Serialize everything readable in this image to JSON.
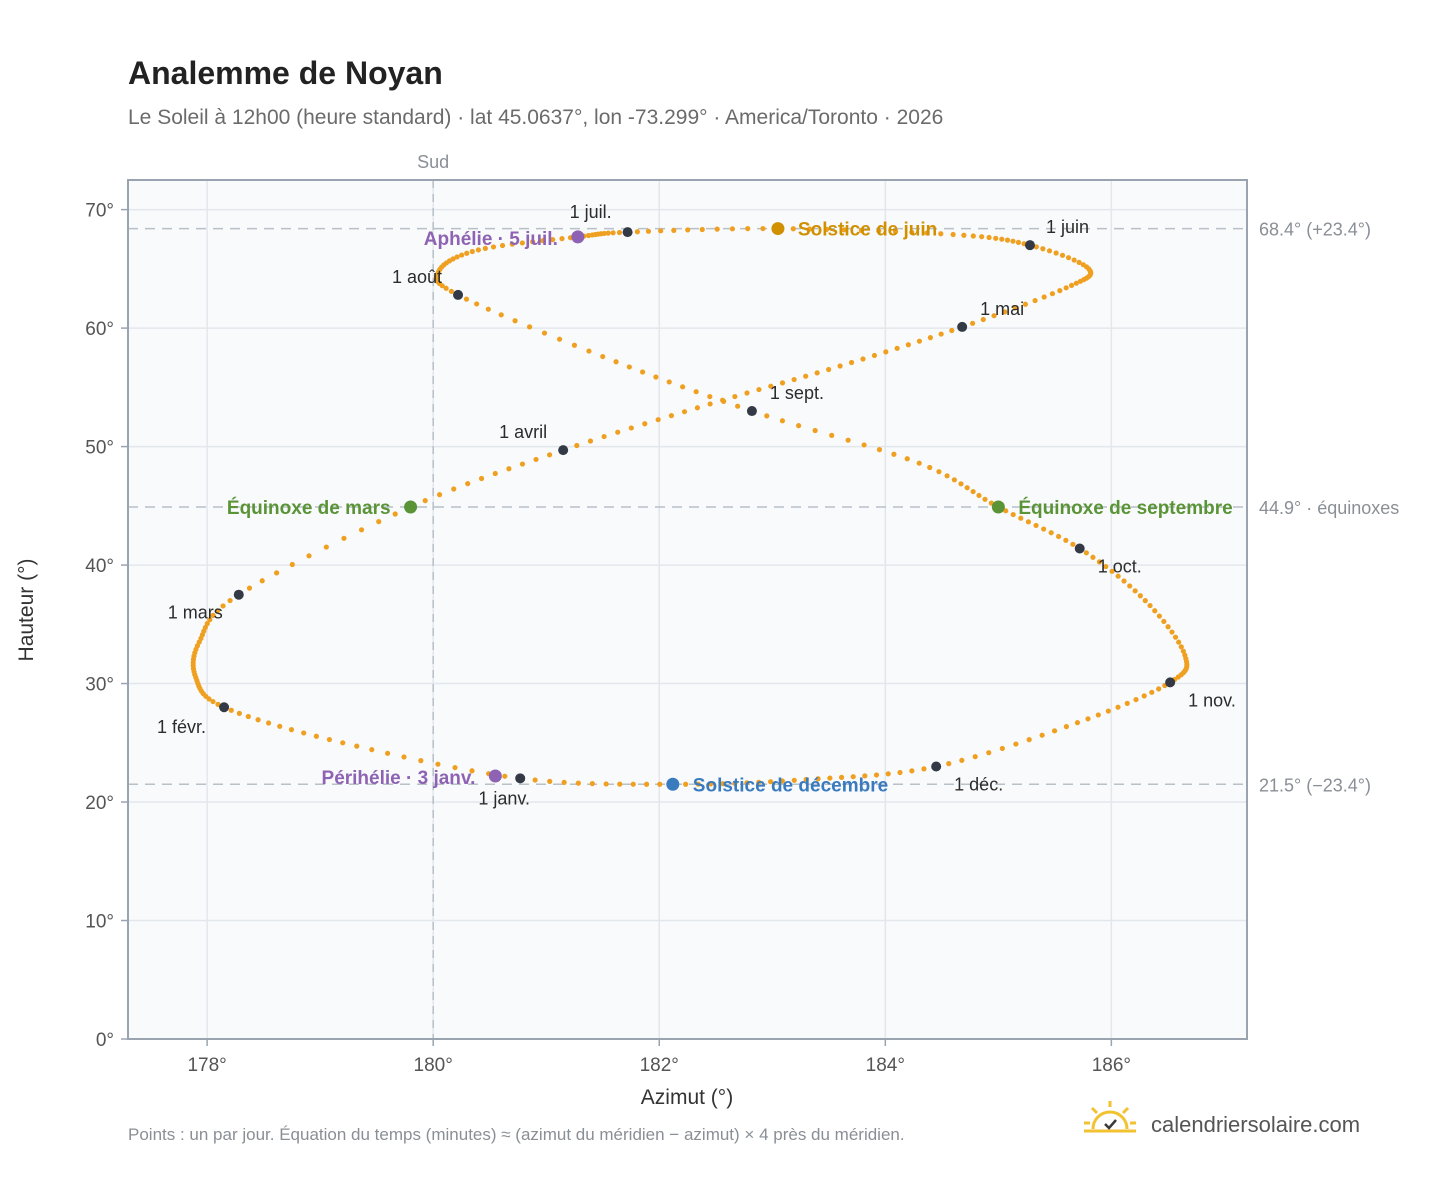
{
  "title": "Analemme de Noyan",
  "subtitle": "Le Soleil à 12h00 (heure standard) · lat 45.0637°, lon -73.299° · America/Toronto · 2026",
  "footnote": "Points : un par jour. Équation du temps (minutes) ≈ (azimut du méridien − azimut) × 4 près du méridien.",
  "brand": "calendriersolaire.com",
  "brand_icon": "sun-checkmark-logo",
  "colors": {
    "curve": "#f0a020",
    "month_dot": "#333a45",
    "equinox": "#5a9437",
    "solstice_june": "#d09000",
    "solstice_december": "#3a7abf",
    "apsis": "#8e63b3",
    "reference_line": "#b8c0c8",
    "plot_bg": "#f8fafc",
    "frame": "#9aa4b0"
  },
  "chart_data": {
    "type": "scatter",
    "xlabel": "Azimut (°)",
    "ylabel": "Hauteur (°)",
    "xlim": [
      177.3,
      187.2
    ],
    "ylim": [
      0,
      72.5
    ],
    "xticks": [
      178,
      180,
      182,
      184,
      186
    ],
    "xtick_labels": [
      "178°",
      "180°",
      "182°",
      "184°",
      "186°"
    ],
    "yticks": [
      0,
      10,
      20,
      30,
      40,
      50,
      60,
      70
    ],
    "ytick_labels": [
      "0°",
      "10°",
      "20°",
      "30°",
      "40°",
      "50°",
      "60°",
      "70°"
    ],
    "grid": true,
    "south_line": {
      "x": 180,
      "label": "Sud"
    },
    "reference_lines": [
      {
        "y": 68.4,
        "label": "68.4° (+23.4°)"
      },
      {
        "y": 44.9,
        "label": "44.9° · équinoxes"
      },
      {
        "y": 21.5,
        "label": "21.5° (−23.4°)"
      }
    ],
    "series": [
      {
        "points_per": "day",
        "points": [
          [
            180.77,
            22.0
          ],
          [
            179.2,
            25.0
          ],
          [
            178.15,
            28.0
          ],
          [
            177.9,
            30.5
          ],
          [
            177.93,
            33.5
          ],
          [
            178.28,
            37.5
          ],
          [
            179.8,
            44.9
          ],
          [
            181.15,
            49.7
          ],
          [
            182.45,
            53.6
          ],
          [
            183.6,
            56.8
          ],
          [
            184.68,
            60.1
          ],
          [
            185.6,
            63.4
          ],
          [
            185.8,
            65.0
          ],
          [
            185.28,
            67.0
          ],
          [
            184.6,
            67.9
          ],
          [
            183.05,
            68.4
          ],
          [
            181.72,
            68.1
          ],
          [
            181.28,
            67.7
          ],
          [
            180.4,
            66.6
          ],
          [
            180.05,
            64.8
          ],
          [
            180.22,
            62.8
          ],
          [
            181.5,
            57.6
          ],
          [
            182.82,
            53.0
          ],
          [
            184.3,
            48.6
          ],
          [
            185.0,
            44.9
          ],
          [
            185.72,
            41.4
          ],
          [
            186.3,
            37.0
          ],
          [
            186.65,
            32.4
          ],
          [
            186.52,
            30.1
          ],
          [
            185.7,
            26.7
          ],
          [
            184.45,
            23.0
          ],
          [
            183.3,
            21.9
          ],
          [
            182.12,
            21.5
          ],
          [
            180.77,
            22.0
          ]
        ]
      }
    ],
    "month_markers": [
      {
        "label": "1 janv.",
        "x": 180.77,
        "y": 22.0
      },
      {
        "label": "1 févr.",
        "x": 178.15,
        "y": 28.0
      },
      {
        "label": "1 mars",
        "x": 178.28,
        "y": 37.5
      },
      {
        "label": "1 avril",
        "x": 181.15,
        "y": 49.7
      },
      {
        "label": "1 mai",
        "x": 184.68,
        "y": 60.1
      },
      {
        "label": "1 juin",
        "x": 185.28,
        "y": 67.0
      },
      {
        "label": "1 juil.",
        "x": 181.72,
        "y": 68.1
      },
      {
        "label": "1 août",
        "x": 180.22,
        "y": 62.8
      },
      {
        "label": "1 sept.",
        "x": 182.82,
        "y": 53.0
      },
      {
        "label": "1 oct.",
        "x": 185.72,
        "y": 41.4
      },
      {
        "label": "1 nov.",
        "x": 186.52,
        "y": 30.1
      },
      {
        "label": "1 déc.",
        "x": 184.45,
        "y": 23.0
      }
    ],
    "events": [
      {
        "label": "Équinoxe de mars",
        "x": 179.8,
        "y": 44.9,
        "kind": "equinox"
      },
      {
        "label": "Équinoxe de septembre",
        "x": 185.0,
        "y": 44.9,
        "kind": "equinox"
      },
      {
        "label": "Solstice de juin",
        "x": 183.05,
        "y": 68.4,
        "kind": "solstice_june"
      },
      {
        "label": "Solstice de décembre",
        "x": 182.12,
        "y": 21.5,
        "kind": "solstice_december"
      },
      {
        "label": "Aphélie · 5 juil.",
        "x": 181.28,
        "y": 67.7,
        "kind": "apsis"
      },
      {
        "label": "Périhélie · 3 janv.",
        "x": 180.55,
        "y": 22.2,
        "kind": "apsis"
      }
    ]
  }
}
